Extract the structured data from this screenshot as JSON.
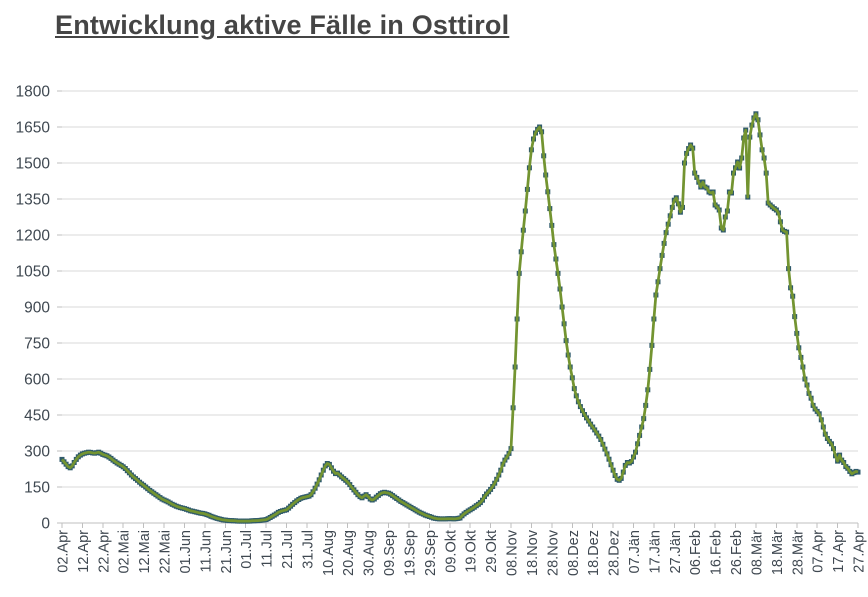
{
  "title": "Entwicklung aktive Fälle in Osttirol",
  "colors": {
    "line": "#739431",
    "marker": "#2F5A6B",
    "gridline": "#D9D9D9",
    "axis_line": "#BFBFBF",
    "axis_text": "#3F4851",
    "title_text": "#454545",
    "background": "#FFFFFF"
  },
  "chart_data": {
    "type": "line",
    "title": "Entwicklung aktive Fälle in Osttirol",
    "xlabel": "",
    "ylabel": "",
    "grid": "horizontal",
    "legend": "none",
    "marker": "square",
    "ylim": [
      0,
      1800
    ],
    "y_ticks": [
      0,
      150,
      300,
      450,
      600,
      750,
      900,
      1050,
      1200,
      1350,
      1500,
      1650,
      1800
    ],
    "x_tick_interval_days": 10,
    "x_tick_labels": [
      "02.Apr",
      "12.Apr",
      "22.Apr",
      "02.Mai",
      "12.Mai",
      "22.Mai",
      "01.Jun",
      "11.Jun",
      "21.Jun",
      "01.Jul",
      "11.Jul",
      "21.Jul",
      "31.Jul",
      "10.Aug",
      "20.Aug",
      "30.Aug",
      "09.Sep",
      "19.Sep",
      "29.Sep",
      "09.Okt",
      "19.Okt",
      "29.Okt",
      "08.Nov",
      "18.Nov",
      "28.Nov",
      "08.Dez",
      "18.Dez",
      "28.Dez",
      "07.Jän",
      "17.Jän",
      "27.Jän",
      "06.Feb",
      "16.Feb",
      "26.Feb",
      "08.Mär",
      "18.Mär",
      "28.Mär",
      "07.Apr",
      "17.Apr",
      "27.Apr"
    ],
    "series": [
      {
        "name": "aktive Fälle",
        "values": [
          265,
          255,
          245,
          235,
          230,
          238,
          252,
          265,
          276,
          283,
          288,
          291,
          293,
          295,
          294,
          292,
          291,
          293,
          295,
          291,
          286,
          283,
          280,
          275,
          269,
          262,
          256,
          250,
          245,
          240,
          234,
          227,
          218,
          209,
          200,
          192,
          185,
          178,
          170,
          163,
          157,
          150,
          143,
          136,
          130,
          124,
          118,
          112,
          106,
          100,
          96,
          92,
          88,
          83,
          78,
          74,
          70,
          67,
          64,
          62,
          60,
          57,
          54,
          51,
          49,
          47,
          45,
          43,
          41,
          40,
          38,
          35,
          32,
          28,
          25,
          22,
          19,
          17,
          15,
          13,
          12,
          11,
          10,
          10,
          9,
          9,
          8,
          8,
          8,
          8,
          8,
          8,
          8,
          9,
          9,
          10,
          10,
          11,
          12,
          13,
          14,
          18,
          23,
          28,
          33,
          38,
          44,
          48,
          51,
          53,
          55,
          62,
          70,
          78,
          85,
          92,
          98,
          103,
          106,
          108,
          110,
          112,
          118,
          130,
          145,
          162,
          180,
          200,
          220,
          238,
          248,
          244,
          230,
          216,
          206,
          208,
          200,
          192,
          185,
          178,
          170,
          160,
          148,
          138,
          128,
          118,
          110,
          105,
          112,
          118,
          110,
          100,
          96,
          100,
          108,
          115,
          122,
          126,
          128,
          126,
          124,
          120,
          114,
          108,
          102,
          96,
          90,
          85,
          80,
          75,
          70,
          65,
          60,
          55,
          50,
          45,
          41,
          37,
          33,
          30,
          27,
          24,
          21,
          19,
          18,
          17,
          17,
          17,
          17,
          18,
          18,
          18,
          17,
          18,
          19,
          21,
          30,
          38,
          44,
          50,
          55,
          60,
          66,
          72,
          78,
          85,
          95,
          110,
          121,
          130,
          140,
          152,
          166,
          182,
          200,
          220,
          245,
          262,
          275,
          290,
          310,
          480,
          650,
          850,
          1040,
          1130,
          1220,
          1300,
          1390,
          1480,
          1555,
          1600,
          1625,
          1640,
          1650,
          1630,
          1530,
          1450,
          1380,
          1310,
          1240,
          1160,
          1100,
          1040,
          975,
          900,
          830,
          760,
          700,
          650,
          605,
          560,
          530,
          505,
          485,
          468,
          452,
          438,
          425,
          412,
          400,
          388,
          375,
          362,
          348,
          328,
          308,
          288,
          266,
          243,
          220,
          198,
          182,
          178,
          186,
          212,
          240,
          252,
          250,
          256,
          275,
          295,
          330,
          365,
          400,
          435,
          490,
          555,
          640,
          740,
          850,
          950,
          1005,
          1060,
          1115,
          1165,
          1210,
          1245,
          1280,
          1315,
          1345,
          1355,
          1330,
          1295,
          1315,
          1500,
          1540,
          1560,
          1575,
          1562,
          1458,
          1440,
          1420,
          1400,
          1421,
          1400,
          1396,
          1379,
          1375,
          1379,
          1325,
          1317,
          1304,
          1229,
          1221,
          1275,
          1300,
          1379,
          1375,
          1458,
          1480,
          1504,
          1479,
          1521,
          1604,
          1637,
          1358,
          1608,
          1658,
          1688,
          1705,
          1680,
          1617,
          1555,
          1521,
          1458,
          1333,
          1325,
          1317,
          1310,
          1304,
          1292,
          1255,
          1221,
          1215,
          1212,
          1060,
          980,
          945,
          860,
          790,
          730,
          690,
          650,
          600,
          575,
          540,
          520,
          490,
          475,
          465,
          455,
          430,
          400,
          370,
          352,
          340,
          330,
          310,
          280,
          258,
          283,
          262,
          252,
          235,
          228,
          215,
          205,
          210,
          215,
          212
        ]
      }
    ]
  }
}
